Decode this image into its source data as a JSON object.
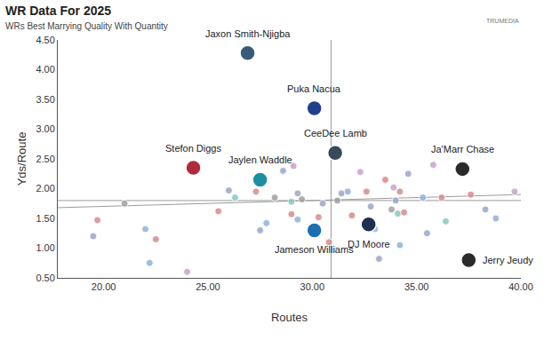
{
  "chart_data": {
    "type": "scatter",
    "title": "WR Data For 2025",
    "subtitle": "WRs Best Marrying Quality With Quantity",
    "logo_text": "TRUMEDIA",
    "x_label": "Routes",
    "y_label": "Yds/Route",
    "marker": "circle",
    "grid": false,
    "xlim": [
      17.8,
      40
    ],
    "ylim": [
      0.5,
      4.5
    ],
    "xticks": [
      {
        "value": 20,
        "label": "20.00"
      },
      {
        "value": 25,
        "label": "25.00"
      },
      {
        "value": 30,
        "label": "30.00"
      },
      {
        "value": 35,
        "label": "35.00"
      },
      {
        "value": 40,
        "label": "40.00"
      }
    ],
    "yticks": [
      {
        "value": 0.5,
        "label": "0.50"
      },
      {
        "value": 1,
        "label": "1.00"
      },
      {
        "value": 1.5,
        "label": "1.50"
      },
      {
        "value": 2,
        "label": "2.00"
      },
      {
        "value": 2.5,
        "label": "2.50"
      },
      {
        "value": 3,
        "label": "3.00"
      },
      {
        "value": 3.5,
        "label": "3.50"
      },
      {
        "value": 4,
        "label": "4.00"
      },
      {
        "value": 4.5,
        "label": "4.50"
      }
    ],
    "reference_lines": {
      "x": 30.9,
      "y": 1.8
    },
    "trend_line": {
      "x": [
        17.8,
        40
      ],
      "values": [
        1.68,
        1.9
      ]
    },
    "x": [
      26.9,
      30.1,
      31.1,
      24.3,
      27.5,
      37.2,
      30.1,
      32.7,
      37.5,
      19.5,
      19.7,
      21.0,
      22.0,
      22.2,
      22.5,
      24.0,
      25.5,
      26.0,
      26.3,
      27.3,
      27.8,
      27.5,
      28.2,
      28.6,
      29.1,
      29.0,
      29.0,
      29.3,
      29.5,
      29.3,
      30.3,
      30.5,
      30.8,
      31.0,
      31.2,
      31.4,
      31.7,
      31.9,
      32.3,
      32.6,
      32.8,
      33.0,
      33.2,
      33.5,
      33.9,
      33.8,
      34.2,
      34.1,
      34.0,
      34.4,
      34.6,
      35.3,
      35.5,
      35.8,
      36.2,
      36.4,
      37.6,
      38.3,
      38.8,
      39.7,
      34.2
    ],
    "values": [
      4.28,
      3.35,
      2.6,
      2.35,
      2.15,
      2.33,
      1.3,
      1.4,
      0.8,
      1.2,
      1.47,
      1.75,
      1.32,
      0.75,
      1.15,
      0.6,
      1.62,
      1.97,
      1.85,
      1.95,
      1.42,
      1.3,
      1.85,
      2.3,
      2.38,
      1.78,
      1.57,
      1.92,
      1.82,
      1.48,
      1.52,
      1.75,
      1.1,
      2.57,
      1.8,
      1.92,
      1.95,
      1.55,
      2.28,
      1.95,
      1.7,
      1.32,
      0.82,
      2.15,
      2.02,
      1.65,
      1.95,
      1.58,
      1.8,
      1.6,
      2.25,
      1.85,
      1.25,
      2.4,
      1.85,
      1.45,
      1.9,
      1.65,
      1.5,
      1.95,
      1.05
    ],
    "labels": [
      "Jaxon Smith-Njigba",
      "Puka Nacua",
      "CeeDee Lamb",
      "Stefon Diggs",
      "Jaylen Waddle",
      "Ja'Marr Chase",
      "Jameson Williams",
      "DJ Moore",
      "Jerry Jeudy",
      null,
      null,
      null,
      null,
      null,
      null,
      null,
      null,
      null,
      null,
      null,
      null,
      null,
      null,
      null,
      null,
      null,
      null,
      null,
      null,
      null,
      null,
      null,
      null,
      null,
      null,
      null,
      null,
      null,
      null,
      null,
      null,
      null,
      null,
      null,
      null,
      null,
      null,
      null,
      null,
      null,
      null,
      null,
      null,
      null,
      null,
      null,
      null,
      null,
      null,
      null,
      null
    ],
    "colors": [
      "#3a5a7a",
      "#1f3f8f",
      "#3a4a5a",
      "#b02a3a",
      "#1d8fa0",
      "#2a2a2a",
      "#1d6fb0",
      "#1f2f4f",
      "#2a2a2a",
      "#9aa7c7",
      "#d98a8a",
      "#a0a0a0",
      "#8fb3d9",
      "#8fb3d9",
      "#d98a8a",
      "#c9a0d0",
      "#d98a8a",
      "#9aa7c7",
      "#8cc7c0",
      "#d98a8a",
      "#8fb3d9",
      "#9aa7c7",
      "#a0a0a0",
      "#9aa7c7",
      "#c9a0d0",
      "#8cc7c0",
      "#d98a8a",
      "#9aa7c7",
      "#a0a0a0",
      "#8fb3d9",
      "#d98a8a",
      "#9aa7c7",
      "#d98a8a",
      "#8cc7c0",
      "#a0a0a0",
      "#9aa7c7",
      "#8fb3d9",
      "#d98a8a",
      "#c9a0d0",
      "#d98a8a",
      "#9aa7c7",
      "#8fb3d9",
      "#9aa7c7",
      "#d98a8a",
      "#c9a0d0",
      "#a0a0a0",
      "#d98a8a",
      "#8cc7c0",
      "#9aa7c7",
      "#d98a8a",
      "#9aa7c7",
      "#8fb3d9",
      "#9aa7c7",
      "#c9a0d0",
      "#d98a8a",
      "#8cc7c0",
      "#d98a8a",
      "#9aa7c7",
      "#8fb3d9",
      "#c9a0d0",
      "#8fb3d9"
    ]
  }
}
